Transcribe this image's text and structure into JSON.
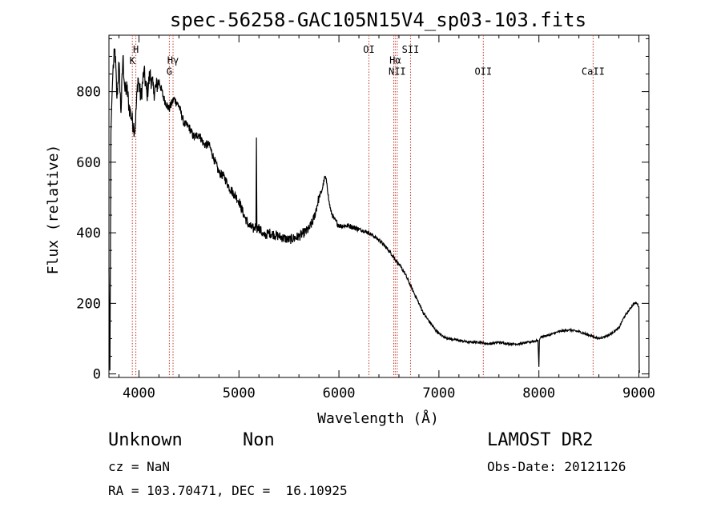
{
  "chart_data": {
    "type": "line",
    "title": "spec-56258-GAC105N15V4_sp03-103.fits",
    "xlabel": "Wavelength (Å)",
    "ylabel": "Flux (relative)",
    "xlim": [
      3700,
      9100
    ],
    "ylim": [
      -10,
      960
    ],
    "xticks": [
      "4000",
      "5000",
      "6000",
      "7000",
      "8000",
      "9000"
    ],
    "xtick_values": [
      4000,
      5000,
      6000,
      7000,
      8000,
      9000
    ],
    "yticks": [
      "0",
      "200",
      "400",
      "600",
      "800"
    ],
    "ytick_values": [
      0,
      200,
      400,
      600,
      800
    ],
    "grid": false,
    "spectrum": {
      "color": "#000000",
      "x": [
        3700,
        3710,
        3720,
        3730,
        3740,
        3760,
        3780,
        3800,
        3820,
        3840,
        3860,
        3880,
        3900,
        3930,
        3960,
        3990,
        4020,
        4050,
        4080,
        4110,
        4150,
        4200,
        4250,
        4300,
        4350,
        4400,
        4450,
        4500,
        4550,
        4600,
        4650,
        4700,
        4750,
        4800,
        4850,
        4900,
        4950,
        5000,
        5050,
        5100,
        5150,
        5170,
        5175,
        5180,
        5190,
        5250,
        5300,
        5400,
        5500,
        5600,
        5700,
        5750,
        5800,
        5830,
        5860,
        5880,
        5900,
        5920,
        5950,
        6000,
        6100,
        6200,
        6300,
        6400,
        6500,
        6550,
        6600,
        6650,
        6700,
        6750,
        6800,
        6850,
        6900,
        6950,
        7000,
        7050,
        7100,
        7200,
        7300,
        7400,
        7500,
        7600,
        7700,
        7800,
        7900,
        7990,
        8000,
        8005,
        8010,
        8020,
        8100,
        8200,
        8300,
        8400,
        8500,
        8600,
        8700,
        8800,
        8850,
        8900,
        8950,
        8980,
        9000,
        9003,
        9005,
        9010
      ],
      "y": [
        300,
        10,
        690,
        780,
        860,
        920,
        780,
        880,
        740,
        900,
        800,
        810,
        760,
        720,
        690,
        840,
        780,
        860,
        790,
        850,
        800,
        830,
        780,
        750,
        780,
        760,
        710,
        700,
        670,
        680,
        650,
        650,
        610,
        570,
        560,
        530,
        510,
        490,
        450,
        420,
        410,
        420,
        670,
        400,
        420,
        390,
        400,
        390,
        380,
        390,
        410,
        440,
        500,
        520,
        560,
        540,
        490,
        460,
        440,
        420,
        420,
        410,
        400,
        380,
        350,
        330,
        310,
        290,
        260,
        230,
        200,
        170,
        150,
        130,
        115,
        105,
        100,
        95,
        90,
        90,
        85,
        90,
        85,
        85,
        90,
        95,
        20,
        95,
        100,
        105,
        110,
        120,
        125,
        120,
        110,
        100,
        110,
        130,
        160,
        180,
        200,
        200,
        190,
        20,
        5,
        5
      ]
    },
    "line_markers": [
      {
        "wave": 3934,
        "label": "K",
        "label_y": 878
      },
      {
        "wave": 3969,
        "label": "H",
        "label_y": 910
      },
      {
        "wave": 4304,
        "label": "G",
        "label_y": 848
      },
      {
        "wave": 4341,
        "label": "Hγ",
        "label_y": 880
      },
      {
        "wave": 6300,
        "label": "OI",
        "label_y": 910
      },
      {
        "wave": 6548,
        "label": "",
        "label_y": 0
      },
      {
        "wave": 6563,
        "label": "Hα",
        "label_y": 880
      },
      {
        "wave": 6583,
        "label": "NII",
        "label_y": 848
      },
      {
        "wave": 6716,
        "label": "SII",
        "label_y": 910
      },
      {
        "wave": 7444,
        "label": "OII",
        "label_y": 848
      },
      {
        "wave": 8542,
        "label": "CaII",
        "label_y": 848
      }
    ],
    "marker_color": "#c0392b"
  },
  "info": {
    "object_class": "Unknown",
    "subclass": "Non",
    "survey": "LAMOST DR2",
    "redshift": "cz = NaN",
    "obs_date": "Obs-Date: 20121126",
    "coords": "RA = 103.70471, DEC =  16.10925"
  }
}
